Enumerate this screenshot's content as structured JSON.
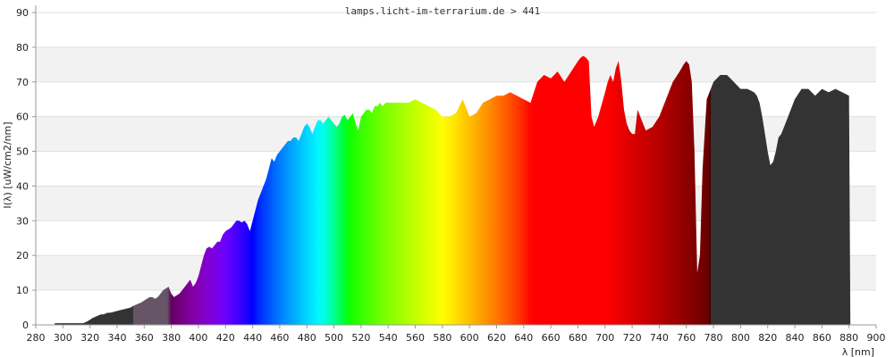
{
  "chart_data": {
    "type": "area",
    "title": "lamps.licht-im-terrarium.de > 441",
    "xlabel": "λ [nm]",
    "ylabel": "I(λ)  [uW/cm2/nm]",
    "xlim": [
      280,
      900
    ],
    "ylim": [
      0,
      90
    ],
    "x_ticks": [
      280,
      300,
      320,
      340,
      360,
      380,
      400,
      420,
      440,
      460,
      480,
      500,
      520,
      540,
      560,
      580,
      600,
      620,
      640,
      660,
      680,
      700,
      720,
      740,
      760,
      780,
      800,
      820,
      840,
      860,
      880,
      900
    ],
    "y_ticks": [
      0,
      10,
      20,
      30,
      40,
      50,
      60,
      70,
      80,
      90
    ],
    "grid": "horizontal",
    "legend": "none",
    "colors": {
      "uv": "#333333",
      "uva_band": "#665566",
      "ir": "#333333",
      "grid_band": "#f2f2f2",
      "axis": "#9a9a9a"
    },
    "x": [
      294,
      300,
      310,
      315,
      318,
      320,
      322,
      325,
      328,
      330,
      333,
      335,
      340,
      345,
      350,
      352,
      355,
      358,
      360,
      362,
      364,
      366,
      368,
      370,
      372,
      374,
      376,
      378,
      380,
      382,
      384,
      386,
      388,
      390,
      392,
      394,
      396,
      398,
      400,
      402,
      404,
      406,
      408,
      410,
      412,
      414,
      416,
      418,
      420,
      422,
      424,
      426,
      428,
      430,
      432,
      434,
      436,
      438,
      440,
      442,
      444,
      446,
      448,
      450,
      452,
      454,
      456,
      458,
      460,
      462,
      464,
      466,
      468,
      470,
      472,
      474,
      476,
      478,
      480,
      482,
      484,
      486,
      488,
      490,
      492,
      494,
      496,
      498,
      500,
      502,
      504,
      506,
      508,
      510,
      512,
      514,
      516,
      518,
      520,
      522,
      524,
      526,
      528,
      530,
      532,
      534,
      536,
      538,
      540,
      545,
      550,
      555,
      560,
      565,
      570,
      575,
      580,
      585,
      590,
      595,
      600,
      605,
      610,
      615,
      620,
      625,
      630,
      635,
      640,
      645,
      650,
      655,
      660,
      665,
      670,
      675,
      680,
      682,
      684,
      686,
      688,
      690,
      692,
      695,
      700,
      702,
      704,
      706,
      708,
      710,
      712,
      714,
      716,
      718,
      720,
      722,
      724,
      726,
      728,
      730,
      735,
      740,
      745,
      750,
      755,
      758,
      760,
      762,
      764,
      766,
      768,
      770,
      772,
      775,
      780,
      785,
      790,
      795,
      800,
      805,
      810,
      812,
      814,
      816,
      818,
      820,
      822,
      824,
      826,
      828,
      830,
      835,
      840,
      845,
      850,
      855,
      860,
      865,
      870,
      875,
      880,
      881
    ],
    "y": [
      0.5,
      0.5,
      0.5,
      0.5,
      1,
      1.5,
      2,
      2.5,
      3,
      3,
      3.5,
      3.5,
      4,
      4.5,
      5,
      5.5,
      6,
      6.5,
      7,
      7.5,
      8,
      8,
      7.5,
      8,
      9,
      10,
      10.5,
      11,
      9,
      8,
      8.5,
      9,
      10,
      11,
      12,
      13,
      11,
      12,
      14,
      17,
      20,
      22,
      22.5,
      22,
      23,
      24,
      24,
      26,
      27,
      27.5,
      28,
      29,
      30,
      30,
      29.5,
      30,
      29,
      27,
      30,
      33,
      36,
      38,
      40,
      42,
      45,
      48,
      47,
      49,
      50,
      51,
      52,
      53,
      53,
      54,
      54,
      53,
      55,
      57,
      58,
      57,
      55,
      57,
      59,
      59,
      58,
      59,
      60,
      59,
      58,
      57,
      58,
      60,
      60.5,
      59,
      60,
      61,
      58,
      56,
      60,
      61,
      62,
      62,
      61,
      63,
      63,
      64,
      63,
      64,
      64,
      64,
      64,
      64,
      65,
      64,
      63,
      62,
      60,
      60,
      61,
      65,
      60,
      61,
      64,
      65,
      66,
      66,
      67,
      66,
      65,
      64,
      70,
      72,
      71,
      73,
      70,
      73,
      76,
      77,
      77.5,
      77,
      76,
      60,
      57,
      60,
      67,
      70,
      72,
      70,
      74,
      76,
      70,
      62,
      58,
      56,
      55,
      55,
      62,
      60,
      58,
      56,
      57,
      60,
      65,
      70,
      73,
      75,
      76,
      75,
      70,
      50,
      15,
      20,
      45,
      65,
      70,
      72,
      72,
      70,
      68,
      68,
      67,
      66,
      64,
      60,
      55,
      50,
      46,
      47,
      50,
      54,
      55,
      60,
      65,
      68,
      68,
      66,
      68,
      67,
      68,
      67,
      66,
      0
    ]
  }
}
